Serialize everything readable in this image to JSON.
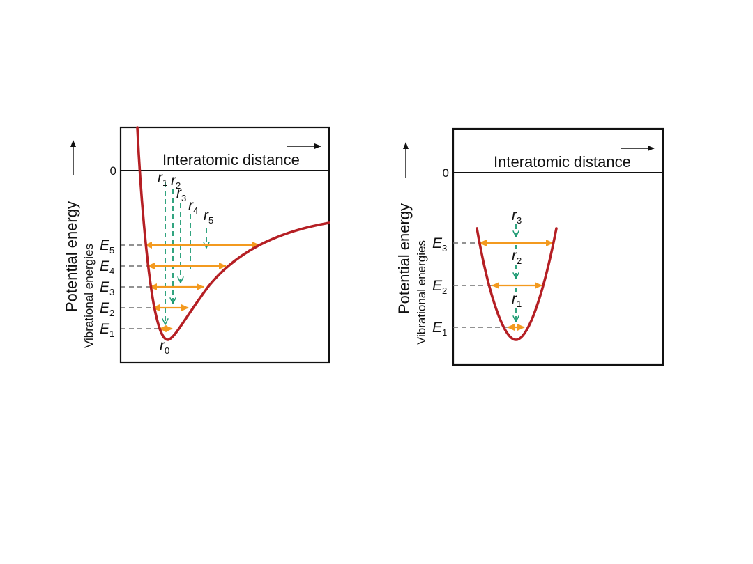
{
  "colors": {
    "curve": "#b51f24",
    "width_arrow": "#f39a1f",
    "equilibrium_line": "#1c9a72",
    "level_dash": "#6e6e6e",
    "frame": "#111111"
  },
  "left_panel": {
    "x_axis_label": "Interatomic distance",
    "y_axis_label": "Potential energy",
    "levels_label": "Vibrational energies",
    "zero_label": "0",
    "energy_letter": "E",
    "energy_subs": [
      "1",
      "2",
      "3",
      "4",
      "5"
    ],
    "radius_letter": "r",
    "radius_subs": [
      "0",
      "1",
      "2",
      "3",
      "4",
      "5"
    ]
  },
  "right_panel": {
    "x_axis_label": "Interatomic distance",
    "y_axis_label": "Potential energy",
    "levels_label": "Vibrational energies",
    "zero_label": "0",
    "energy_letter": "E",
    "energy_subs": [
      "1",
      "2",
      "3"
    ],
    "radius_letter": "r",
    "radius_subs": [
      "1",
      "2",
      "3"
    ]
  }
}
